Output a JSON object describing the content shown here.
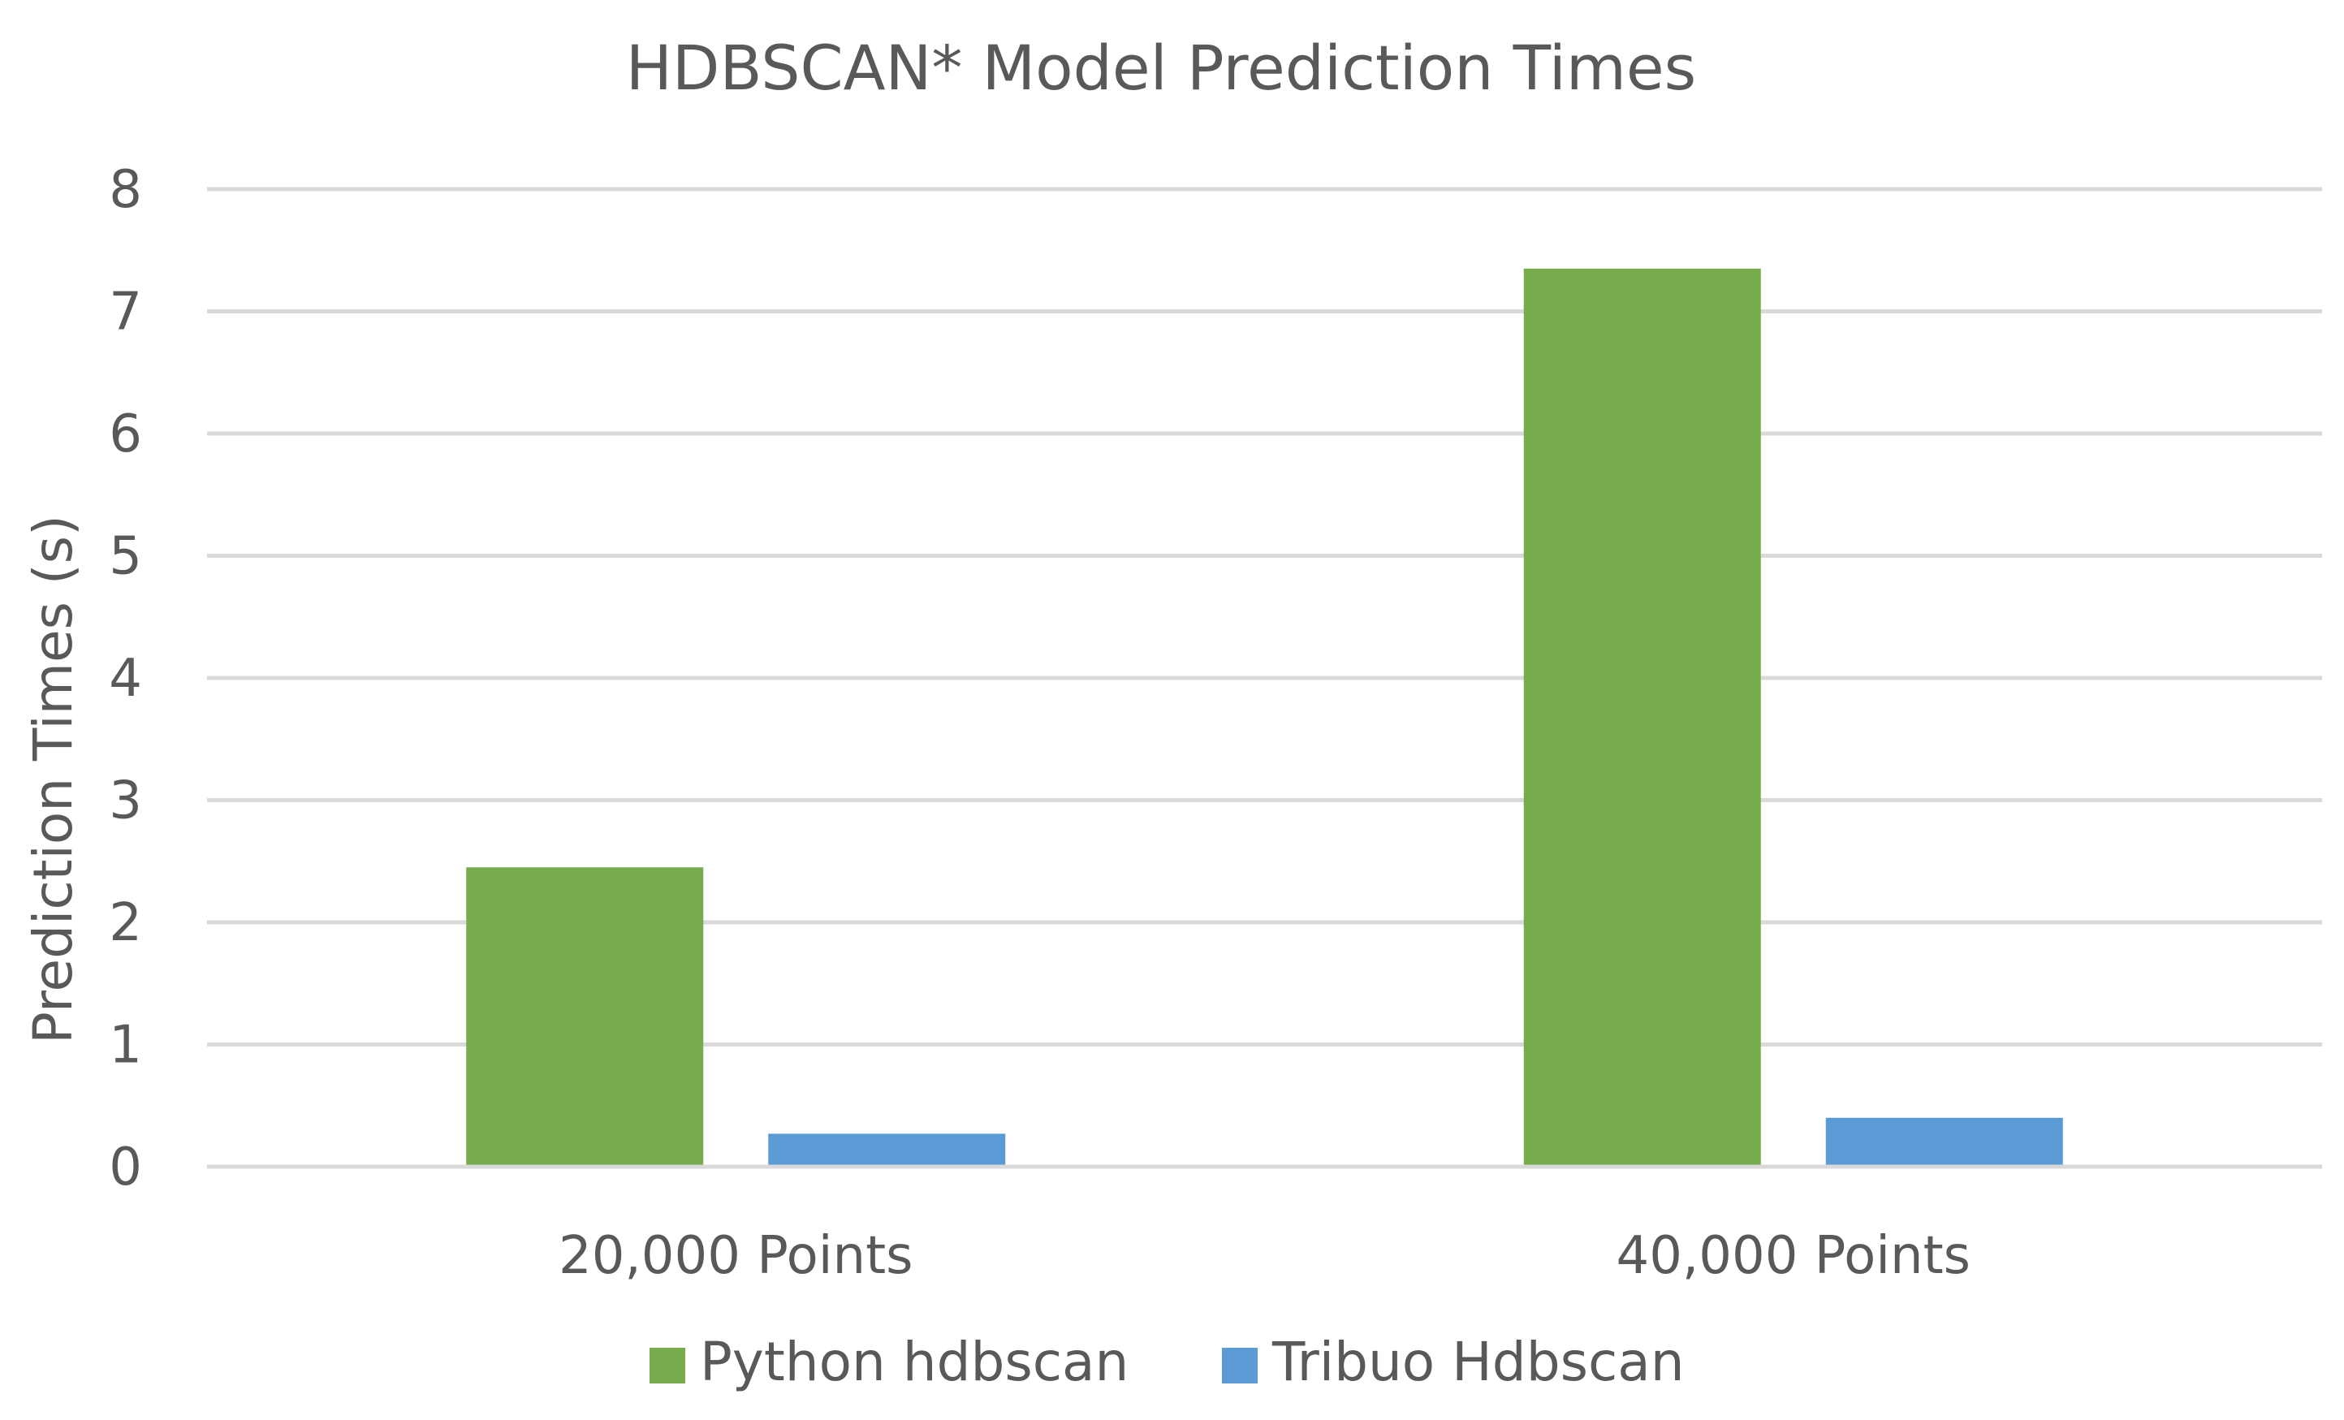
{
  "chart_data": {
    "type": "bar",
    "title": "HDBSCAN* Model Prediction Times",
    "xlabel": "",
    "ylabel": "Prediction Times (s)",
    "categories": [
      "20,000 Points",
      "40,000 Points"
    ],
    "series": [
      {
        "name": "Python hdbscan",
        "color": "#77ac4d",
        "values": [
          2.45,
          7.35
        ]
      },
      {
        "name": "Tribuo Hdbscan",
        "color": "#5b9bd5",
        "values": [
          0.27,
          0.4
        ]
      }
    ],
    "ylim": [
      0,
      8
    ],
    "yticks": [
      "0",
      "1",
      "2",
      "3",
      "4",
      "5",
      "6",
      "7",
      "8"
    ],
    "grid": true,
    "legend": "bottom"
  }
}
